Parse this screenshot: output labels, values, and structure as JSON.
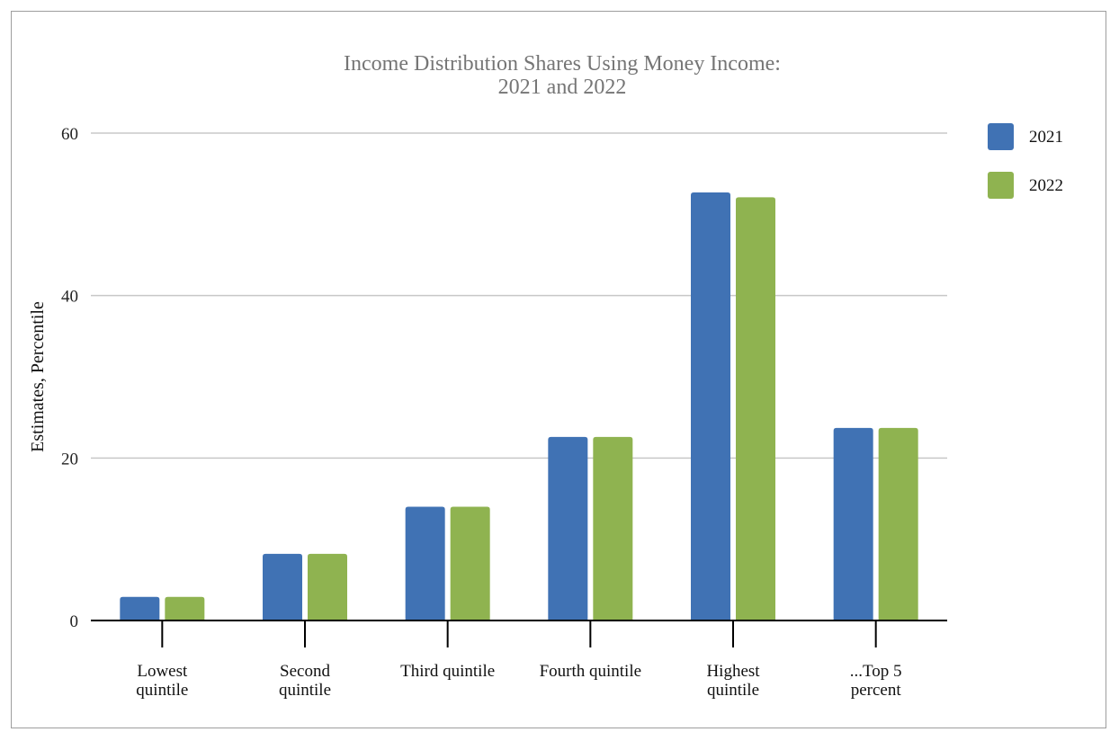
{
  "chart_data": {
    "type": "bar",
    "title": "Income Distribution Shares Using Money Income:\n2021 and 2022",
    "xlabel": "",
    "ylabel": "Estimates, Percentile",
    "categories": [
      "Lowest\nquintile",
      "Second\nquintile",
      "Third quintile",
      "Fourth quintile",
      "Highest\nquintile",
      "...Top 5\npercent"
    ],
    "series": [
      {
        "name": "2021",
        "color": "#4072b4",
        "values": [
          2.9,
          8.2,
          14.0,
          22.6,
          52.7,
          23.7
        ]
      },
      {
        "name": "2022",
        "color": "#8fb350",
        "values": [
          2.9,
          8.2,
          14.0,
          22.6,
          52.1,
          23.7
        ]
      }
    ],
    "ylim": [
      0,
      60
    ],
    "yticks": [
      0,
      20,
      40,
      60
    ],
    "grid": true,
    "legend_position": "right"
  },
  "colors": {
    "gridline": "#c8c8c8",
    "axis": "#000000"
  }
}
